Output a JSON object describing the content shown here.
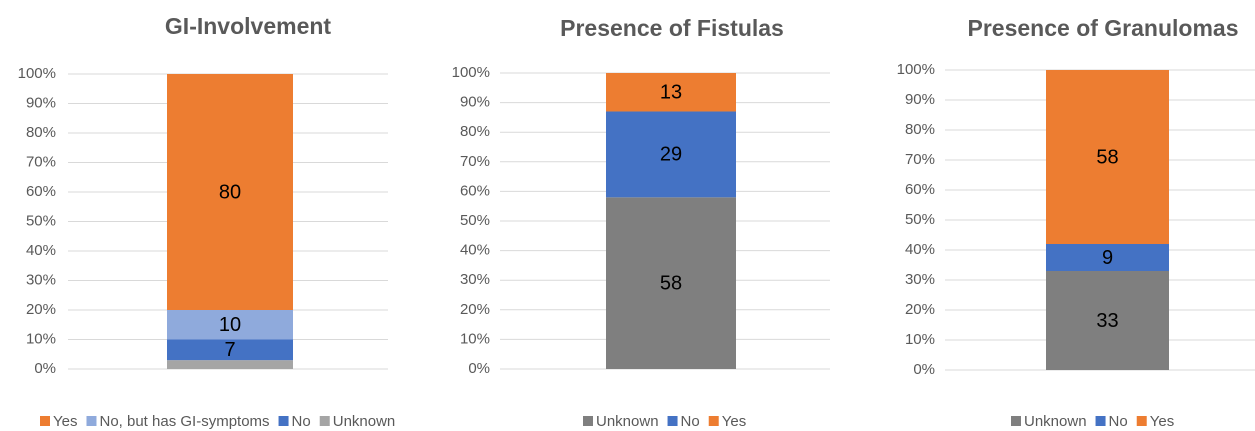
{
  "chart_data": [
    {
      "type": "bar",
      "title": "GI-Involvement",
      "categories": [
        ""
      ],
      "legend_reversed": true,
      "series": [
        {
          "name": "Unknown",
          "color": "#a5a5a5",
          "values": [
            3
          ],
          "value_labels": [
            null
          ]
        },
        {
          "name": "No",
          "color": "#4472c4",
          "values": [
            7
          ]
        },
        {
          "name": "No, but has GI-symptoms",
          "color": "#8faadc",
          "values": [
            10
          ]
        },
        {
          "name": "Yes",
          "color": "#ed7d31",
          "values": [
            80
          ]
        }
      ],
      "ylim": [
        0,
        100
      ],
      "yticks": [
        {
          "value": 0,
          "label": "0%"
        },
        {
          "value": 10,
          "label": "10%"
        },
        {
          "value": 20,
          "label": "20%"
        },
        {
          "value": 30,
          "label": "30%"
        },
        {
          "value": 40,
          "label": "40%"
        },
        {
          "value": 50,
          "label": "50%"
        },
        {
          "value": 60,
          "label": "60%"
        },
        {
          "value": 70,
          "label": "70%"
        },
        {
          "value": 80,
          "label": "80%"
        },
        {
          "value": 90,
          "label": "90%"
        },
        {
          "value": 100,
          "label": "100%"
        }
      ],
      "grid": true,
      "legend": "bottom"
    },
    {
      "type": "bar",
      "title": "Presence of Fistulas",
      "categories": [
        ""
      ],
      "series": [
        {
          "name": "Unknown",
          "color": "#7f7f7f",
          "values": [
            58
          ]
        },
        {
          "name": "No",
          "color": "#4472c4",
          "values": [
            29
          ]
        },
        {
          "name": "Yes",
          "color": "#ed7d31",
          "values": [
            13
          ]
        }
      ],
      "ylim": [
        0,
        100
      ],
      "yticks": [
        {
          "value": 0,
          "label": "0%"
        },
        {
          "value": 10,
          "label": "10%"
        },
        {
          "value": 20,
          "label": "20%"
        },
        {
          "value": 30,
          "label": "30%"
        },
        {
          "value": 40,
          "label": "40%"
        },
        {
          "value": 50,
          "label": "50%"
        },
        {
          "value": 60,
          "label": "60%"
        },
        {
          "value": 70,
          "label": "70%"
        },
        {
          "value": 80,
          "label": "80%"
        },
        {
          "value": 90,
          "label": "90%"
        },
        {
          "value": 100,
          "label": "100%"
        }
      ],
      "grid": true,
      "legend": "bottom"
    },
    {
      "type": "bar",
      "title": "Presence of Granulomas",
      "categories": [
        ""
      ],
      "series": [
        {
          "name": "Unknown",
          "color": "#7f7f7f",
          "values": [
            33
          ]
        },
        {
          "name": "No",
          "color": "#4472c4",
          "values": [
            9
          ]
        },
        {
          "name": "Yes",
          "color": "#ed7d31",
          "values": [
            58
          ]
        }
      ],
      "ylim": [
        0,
        100
      ],
      "yticks": [
        {
          "value": 0,
          "label": "0%"
        },
        {
          "value": 10,
          "label": "10%"
        },
        {
          "value": 20,
          "label": "20%"
        },
        {
          "value": 30,
          "label": "30%"
        },
        {
          "value": 40,
          "label": "40%"
        },
        {
          "value": 50,
          "label": "50%"
        },
        {
          "value": 60,
          "label": "60%"
        },
        {
          "value": 70,
          "label": "70%"
        },
        {
          "value": 80,
          "label": "80%"
        },
        {
          "value": 90,
          "label": "90%"
        },
        {
          "value": 100,
          "label": "100%"
        }
      ],
      "grid": true,
      "legend": "bottom"
    }
  ]
}
